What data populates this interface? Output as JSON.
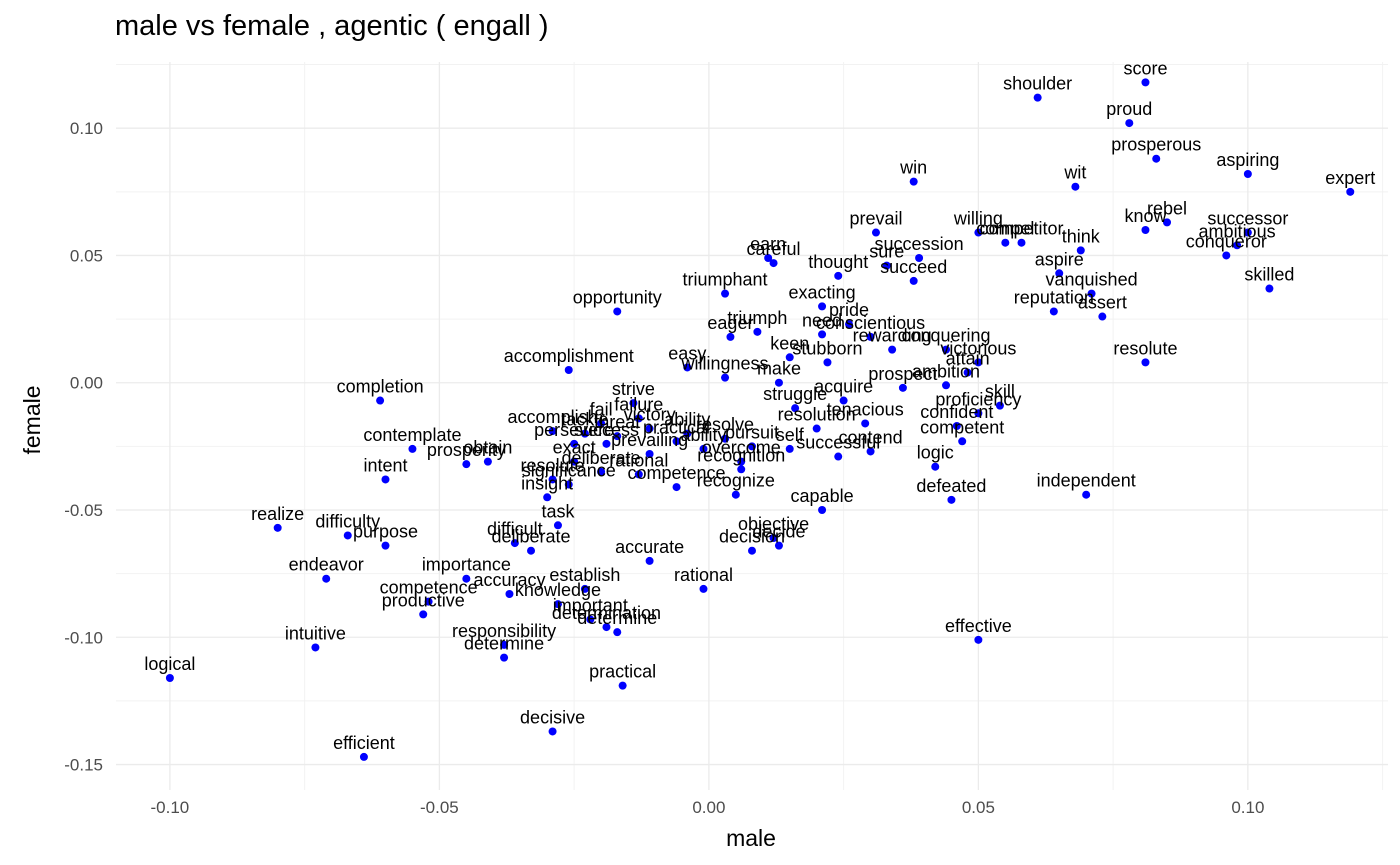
{
  "chart_data": {
    "type": "scatter",
    "title": "male vs female , agentic ( engall )",
    "xlabel": "male",
    "ylabel": "female",
    "xlim": [
      -0.11,
      0.126
    ],
    "ylim": [
      -0.16,
      0.126
    ],
    "x_ticks": [
      -0.1,
      -0.05,
      0.0,
      0.05,
      0.1
    ],
    "x_tick_labels": [
      "-0.10",
      "-0.05",
      "0.00",
      "0.05",
      "0.10"
    ],
    "y_ticks": [
      -0.15,
      -0.1,
      -0.05,
      0.0,
      0.05,
      0.1
    ],
    "y_tick_labels": [
      "-0.15",
      "-0.10",
      "-0.05",
      "0.00",
      "0.05",
      "0.10"
    ],
    "grid": true,
    "point_color": "#0000ff",
    "points": [
      {
        "label": "score",
        "x": 0.081,
        "y": 0.118
      },
      {
        "label": "shoulder",
        "x": 0.061,
        "y": 0.112
      },
      {
        "label": "proud",
        "x": 0.078,
        "y": 0.102
      },
      {
        "label": "prosperous",
        "x": 0.083,
        "y": 0.088
      },
      {
        "label": "aspiring",
        "x": 0.1,
        "y": 0.082
      },
      {
        "label": "win",
        "x": 0.038,
        "y": 0.079
      },
      {
        "label": "wit",
        "x": 0.068,
        "y": 0.077
      },
      {
        "label": "expert",
        "x": 0.119,
        "y": 0.075
      },
      {
        "label": "rebel",
        "x": 0.085,
        "y": 0.063
      },
      {
        "label": "know",
        "x": 0.081,
        "y": 0.06
      },
      {
        "label": "successor",
        "x": 0.1,
        "y": 0.059
      },
      {
        "label": "prevail",
        "x": 0.031,
        "y": 0.059
      },
      {
        "label": "willing",
        "x": 0.05,
        "y": 0.059
      },
      {
        "label": "competitor",
        "x": 0.058,
        "y": 0.055
      },
      {
        "label": "compel",
        "x": 0.055,
        "y": 0.055
      },
      {
        "label": "ambitious",
        "x": 0.098,
        "y": 0.054
      },
      {
        "label": "think",
        "x": 0.069,
        "y": 0.052
      },
      {
        "label": "succession",
        "x": 0.039,
        "y": 0.049
      },
      {
        "label": "earn",
        "x": 0.011,
        "y": 0.049
      },
      {
        "label": "careful",
        "x": 0.012,
        "y": 0.047
      },
      {
        "label": "conqueror",
        "x": 0.096,
        "y": 0.05
      },
      {
        "label": "sure",
        "x": 0.033,
        "y": 0.046
      },
      {
        "label": "aspire",
        "x": 0.065,
        "y": 0.043
      },
      {
        "label": "thought",
        "x": 0.024,
        "y": 0.042
      },
      {
        "label": "succeed",
        "x": 0.038,
        "y": 0.04
      },
      {
        "label": "vanquished",
        "x": 0.071,
        "y": 0.035
      },
      {
        "label": "skilled",
        "x": 0.104,
        "y": 0.037
      },
      {
        "label": "triumphant",
        "x": 0.003,
        "y": 0.035
      },
      {
        "label": "reputation",
        "x": 0.064,
        "y": 0.028
      },
      {
        "label": "assert",
        "x": 0.073,
        "y": 0.026
      },
      {
        "label": "exacting",
        "x": 0.021,
        "y": 0.03
      },
      {
        "label": "opportunity",
        "x": -0.017,
        "y": 0.028
      },
      {
        "label": "pride",
        "x": 0.026,
        "y": 0.023
      },
      {
        "label": "triumph",
        "x": 0.009,
        "y": 0.02
      },
      {
        "label": "eager",
        "x": 0.004,
        "y": 0.018
      },
      {
        "label": "need",
        "x": 0.021,
        "y": 0.019
      },
      {
        "label": "conscientious",
        "x": 0.03,
        "y": 0.018
      },
      {
        "label": "rewarding",
        "x": 0.034,
        "y": 0.013
      },
      {
        "label": "conquering",
        "x": 0.044,
        "y": 0.013
      },
      {
        "label": "keen",
        "x": 0.015,
        "y": 0.01
      },
      {
        "label": "stubborn",
        "x": 0.022,
        "y": 0.008
      },
      {
        "label": "victorious",
        "x": 0.05,
        "y": 0.008
      },
      {
        "label": "resolute",
        "x": 0.081,
        "y": 0.008
      },
      {
        "label": "accomplishment",
        "x": -0.026,
        "y": 0.005
      },
      {
        "label": "easy",
        "x": -0.004,
        "y": 0.006
      },
      {
        "label": "attain",
        "x": 0.048,
        "y": 0.004
      },
      {
        "label": "willingness",
        "x": 0.003,
        "y": 0.002
      },
      {
        "label": "make",
        "x": 0.013,
        "y": 0.0
      },
      {
        "label": "prospect",
        "x": 0.036,
        "y": -0.002
      },
      {
        "label": "ambition",
        "x": 0.044,
        "y": -0.001
      },
      {
        "label": "completion",
        "x": -0.061,
        "y": -0.007
      },
      {
        "label": "acquire",
        "x": 0.025,
        "y": -0.007
      },
      {
        "label": "strive",
        "x": -0.014,
        "y": -0.008
      },
      {
        "label": "struggle",
        "x": 0.016,
        "y": -0.01
      },
      {
        "label": "skill",
        "x": 0.054,
        "y": -0.009
      },
      {
        "label": "proficiency",
        "x": 0.05,
        "y": -0.012
      },
      {
        "label": "failure",
        "x": -0.013,
        "y": -0.014
      },
      {
        "label": "fail",
        "x": -0.02,
        "y": -0.016
      },
      {
        "label": "tenacious",
        "x": 0.029,
        "y": -0.016
      },
      {
        "label": "confident",
        "x": 0.046,
        "y": -0.017
      },
      {
        "label": "victory",
        "x": -0.011,
        "y": -0.018
      },
      {
        "label": "resolution",
        "x": 0.02,
        "y": -0.018
      },
      {
        "label": "accomplish",
        "x": -0.029,
        "y": -0.019
      },
      {
        "label": "tackle",
        "x": -0.023,
        "y": -0.02
      },
      {
        "label": "threat",
        "x": -0.017,
        "y": -0.021
      },
      {
        "label": "ability",
        "x": -0.004,
        "y": -0.02
      },
      {
        "label": "resolve",
        "x": 0.003,
        "y": -0.022
      },
      {
        "label": "competent",
        "x": 0.047,
        "y": -0.023
      },
      {
        "label": "persevere",
        "x": -0.025,
        "y": -0.024
      },
      {
        "label": "pursuit",
        "x": 0.008,
        "y": -0.025
      },
      {
        "label": "practical",
        "x": -0.006,
        "y": -0.023
      },
      {
        "label": "success",
        "x": -0.019,
        "y": -0.024
      },
      {
        "label": "contemplate",
        "x": -0.055,
        "y": -0.026
      },
      {
        "label": "contend",
        "x": 0.03,
        "y": -0.027
      },
      {
        "label": "successful",
        "x": 0.024,
        "y": -0.029
      },
      {
        "label": "self",
        "x": 0.015,
        "y": -0.026
      },
      {
        "label": "ability2",
        "x": -0.001,
        "y": -0.026
      },
      {
        "label": "prevailing",
        "x": -0.011,
        "y": -0.028
      },
      {
        "label": "overcome",
        "x": 0.006,
        "y": -0.031
      },
      {
        "label": "prosperity",
        "x": -0.045,
        "y": -0.032
      },
      {
        "label": "obtain",
        "x": -0.041,
        "y": -0.031
      },
      {
        "label": "intent",
        "x": -0.06,
        "y": -0.038
      },
      {
        "label": "logic",
        "x": 0.042,
        "y": -0.033
      },
      {
        "label": "exact",
        "x": -0.025,
        "y": -0.031
      },
      {
        "label": "deliberate2",
        "x": -0.02,
        "y": -0.035
      },
      {
        "label": "recognition",
        "x": 0.006,
        "y": -0.034
      },
      {
        "label": "rational2",
        "x": -0.013,
        "y": -0.036
      },
      {
        "label": "resolute2",
        "x": -0.029,
        "y": -0.038
      },
      {
        "label": "significance",
        "x": -0.026,
        "y": -0.04
      },
      {
        "label": "competence",
        "x": -0.006,
        "y": -0.041
      },
      {
        "label": "recognize",
        "x": 0.005,
        "y": -0.044
      },
      {
        "label": "defeated",
        "x": 0.045,
        "y": -0.046
      },
      {
        "label": "independent",
        "x": 0.07,
        "y": -0.044
      },
      {
        "label": "capable",
        "x": 0.021,
        "y": -0.05
      },
      {
        "label": "insight",
        "x": -0.03,
        "y": -0.045
      },
      {
        "label": "realize",
        "x": -0.08,
        "y": -0.057
      },
      {
        "label": "difficulty",
        "x": -0.067,
        "y": -0.06
      },
      {
        "label": "purpose",
        "x": -0.06,
        "y": -0.064
      },
      {
        "label": "task",
        "x": -0.028,
        "y": -0.056
      },
      {
        "label": "difficult",
        "x": -0.036,
        "y": -0.063
      },
      {
        "label": "deliberate",
        "x": -0.033,
        "y": -0.066
      },
      {
        "label": "objective",
        "x": 0.012,
        "y": -0.061
      },
      {
        "label": "decide",
        "x": 0.013,
        "y": -0.064
      },
      {
        "label": "accurate",
        "x": -0.011,
        "y": -0.07
      },
      {
        "label": "decision",
        "x": 0.008,
        "y": -0.066
      },
      {
        "label": "endeavor",
        "x": -0.071,
        "y": -0.077
      },
      {
        "label": "importance",
        "x": -0.045,
        "y": -0.077
      },
      {
        "label": "rational",
        "x": -0.001,
        "y": -0.081
      },
      {
        "label": "establish",
        "x": -0.023,
        "y": -0.081
      },
      {
        "label": "accuracy",
        "x": -0.037,
        "y": -0.083
      },
      {
        "label": "competence2",
        "x": -0.052,
        "y": -0.086
      },
      {
        "label": "knowledge",
        "x": -0.028,
        "y": -0.087
      },
      {
        "label": "productive",
        "x": -0.053,
        "y": -0.091
      },
      {
        "label": "important",
        "x": -0.022,
        "y": -0.093
      },
      {
        "label": "determination",
        "x": -0.019,
        "y": -0.096
      },
      {
        "label": "determine2",
        "x": -0.017,
        "y": -0.098
      },
      {
        "label": "intuitive",
        "x": -0.073,
        "y": -0.104
      },
      {
        "label": "responsibility",
        "x": -0.038,
        "y": -0.103
      },
      {
        "label": "determine",
        "x": -0.038,
        "y": -0.108
      },
      {
        "label": "effective",
        "x": 0.05,
        "y": -0.101
      },
      {
        "label": "logical",
        "x": -0.1,
        "y": -0.116
      },
      {
        "label": "practical2",
        "x": -0.016,
        "y": -0.119
      },
      {
        "label": "decisive",
        "x": -0.029,
        "y": -0.137
      },
      {
        "label": "efficient",
        "x": -0.064,
        "y": -0.147
      }
    ],
    "display_labels": {
      "ability2": "ability",
      "deliberate2": "deliberate",
      "rational2": "rational",
      "resolute2": "resolute",
      "competence2": "competence",
      "determine2": "determine",
      "practical2": "practical"
    }
  }
}
